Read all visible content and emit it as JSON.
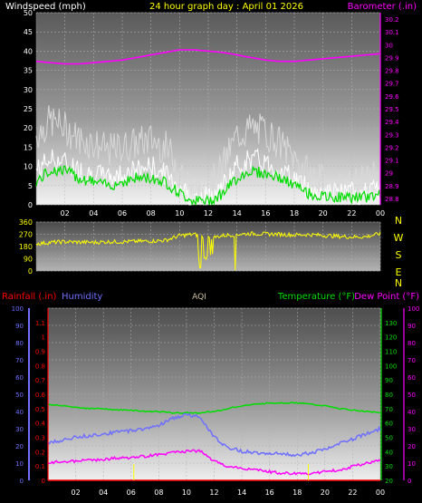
{
  "header": {
    "left_title": "Windspeed (mph)",
    "center_title": "24 hour graph day : April 01 2026",
    "right_title": "Barometer (.in)"
  },
  "colors": {
    "background": "#000000",
    "windspeed": "#ffffff",
    "gust": "#d8d8d8",
    "wind_avg": "#00dd00",
    "barometer": "#ff00ff",
    "direction": "#ffff00",
    "rainfall": "#ff0000",
    "humidity": "#6f6fff",
    "temperature": "#00dd00",
    "dew_point": "#ff00ff",
    "aqi": "#d0c0a0"
  },
  "chart_data": [
    {
      "type": "line",
      "name": "wind-barometer",
      "title": "24 hour graph day : April 01 2026",
      "xlabel": "",
      "x_ticks": [
        "02",
        "04",
        "06",
        "08",
        "10",
        "12",
        "14",
        "16",
        "18",
        "20",
        "22",
        "00"
      ],
      "left_axis": {
        "label": "Windspeed (mph)",
        "ylim": [
          0,
          50
        ],
        "ticks": [
          "0",
          "5",
          "10",
          "15",
          "20",
          "25",
          "30",
          "35",
          "40",
          "45",
          "50"
        ]
      },
      "right_axis": {
        "label": "Barometer (.in)",
        "ylim": [
          28.75,
          30.25
        ],
        "ticks": [
          "28.8",
          "28.9",
          "29",
          "29.1",
          "29.2",
          "29.3",
          "29.4",
          "29.5",
          "29.6",
          "29.7",
          "29.8",
          "29.9",
          "30",
          "30.1",
          "30.2"
        ]
      },
      "series": [
        {
          "x_hours": [
            0,
            1,
            2,
            3,
            4,
            5,
            6,
            7,
            8,
            9,
            10,
            11,
            12,
            13,
            14,
            15,
            16,
            17,
            18,
            19,
            20,
            21,
            22,
            23,
            24
          ],
          "gust": [
            18,
            22,
            20,
            17,
            16,
            14,
            15,
            16,
            17,
            15,
            10,
            3,
            4,
            10,
            18,
            20,
            19,
            16,
            12,
            8,
            6,
            5,
            5,
            6,
            9
          ],
          "wind": [
            9,
            12,
            11,
            9,
            8,
            7,
            8,
            9,
            10,
            8,
            5,
            1,
            2,
            5,
            10,
            12,
            11,
            9,
            7,
            4,
            3,
            3,
            3,
            3,
            4
          ],
          "wind_avg": [
            6,
            9,
            9,
            7,
            6,
            5,
            6,
            7,
            7,
            6,
            3,
            1,
            1,
            3,
            7,
            9,
            8,
            7,
            5,
            3,
            2,
            2,
            2,
            2,
            3
          ],
          "barometer": [
            29.87,
            29.86,
            29.85,
            29.85,
            29.86,
            29.87,
            29.88,
            29.9,
            29.92,
            29.94,
            29.96,
            29.96,
            29.95,
            29.94,
            29.92,
            29.9,
            29.88,
            29.87,
            29.87,
            29.88,
            29.89,
            29.9,
            29.91,
            29.92,
            29.93
          ]
        }
      ]
    },
    {
      "type": "line",
      "name": "wind-direction",
      "side_labels": [
        "N",
        "W",
        "S",
        "E",
        "N"
      ],
      "left_axis": {
        "ylim": [
          0,
          360
        ],
        "ticks": [
          "0",
          "90",
          "180",
          "270",
          "360"
        ]
      },
      "series": [
        {
          "x_hours": [
            0,
            1,
            2,
            3,
            4,
            5,
            6,
            7,
            8,
            9,
            10,
            11,
            12,
            13,
            14,
            15,
            16,
            17,
            18,
            19,
            20,
            21,
            22,
            23,
            24
          ],
          "direction": [
            200,
            210,
            215,
            212,
            210,
            215,
            215,
            218,
            220,
            225,
            260,
            270,
            240,
            260,
            270,
            275,
            272,
            270,
            265,
            268,
            262,
            255,
            250,
            252,
            275
          ]
        }
      ]
    },
    {
      "type": "line",
      "name": "rain-humidity-temperature",
      "x_ticks": [
        "02",
        "04",
        "06",
        "08",
        "10",
        "12",
        "14",
        "16",
        "18",
        "20",
        "22",
        "00"
      ],
      "header": {
        "rainfall": "Rainfall (.in)",
        "humidity": "Humidity",
        "aqi": "AQI",
        "temperature": "Temperature (°F)",
        "dew_point": "Dew Point (°F)"
      },
      "rain_axis": {
        "ylim": [
          0,
          1.2
        ],
        "ticks": [
          "0",
          "0.1",
          "0.2",
          "0.3",
          "0.4",
          "0.5",
          "0.6",
          "0.7",
          "0.8",
          "0.9",
          "1",
          "1.1"
        ]
      },
      "humidity_axis": {
        "ylim": [
          0,
          100
        ],
        "ticks": [
          "0",
          "10",
          "20",
          "30",
          "40",
          "50",
          "60",
          "70",
          "80",
          "90",
          "100"
        ]
      },
      "temp_axis": {
        "ylim": [
          20,
          140
        ],
        "ticks": [
          "20",
          "30",
          "40",
          "50",
          "60",
          "70",
          "80",
          "90",
          "100",
          "110",
          "120",
          "130"
        ]
      },
      "right_axis": {
        "ylim": [
          0,
          100
        ],
        "ticks": [
          "0",
          "10",
          "20",
          "30",
          "40",
          "50",
          "60",
          "70",
          "80",
          "90",
          "100"
        ]
      },
      "series": [
        {
          "x_hours": [
            0,
            1,
            2,
            3,
            4,
            5,
            6,
            7,
            8,
            9,
            10,
            11,
            12,
            13,
            14,
            15,
            16,
            17,
            18,
            19,
            20,
            21,
            22,
            23,
            24
          ],
          "temperature": [
            73,
            72,
            71,
            70,
            70,
            69,
            69,
            68,
            68,
            67,
            67,
            67,
            68,
            70,
            72,
            73,
            74,
            74,
            74,
            73,
            72,
            70,
            69,
            68,
            67
          ],
          "humidity": [
            22,
            23,
            25,
            26,
            27,
            28,
            29,
            30,
            32,
            36,
            38,
            37,
            25,
            19,
            17,
            16,
            16,
            15,
            15,
            16,
            18,
            21,
            24,
            27,
            30
          ],
          "dew_point": [
            10,
            11,
            11,
            12,
            12,
            13,
            13,
            14,
            15,
            16,
            17,
            17,
            11,
            8,
            7,
            6,
            5,
            4,
            4,
            4,
            5,
            6,
            8,
            10,
            12
          ],
          "rainfall": [
            0,
            0,
            0,
            0,
            0,
            0,
            0,
            0,
            0,
            0,
            0,
            0,
            0,
            0,
            0,
            0,
            0,
            0,
            0,
            0,
            0,
            0,
            0,
            0,
            0
          ]
        }
      ]
    }
  ]
}
